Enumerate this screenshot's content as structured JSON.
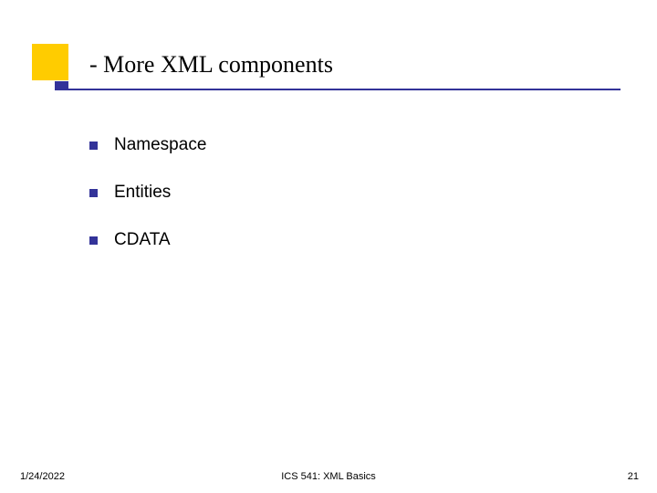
{
  "slide": {
    "title": "- More XML components",
    "bullets": [
      "Namespace",
      "Entities",
      "CDATA"
    ],
    "footer": {
      "date": "1/24/2022",
      "center": "ICS 541: XML Basics",
      "page": "21"
    },
    "colors": {
      "accent_block": "#ffcc00",
      "underline": "#333399",
      "bullet": "#333399",
      "background": "#ffffff",
      "text": "#000000"
    },
    "typography": {
      "title_font": "Times New Roman",
      "title_size_pt": 26,
      "body_font": "Verdana",
      "body_size_pt": 19,
      "footer_size_pt": 11
    }
  }
}
